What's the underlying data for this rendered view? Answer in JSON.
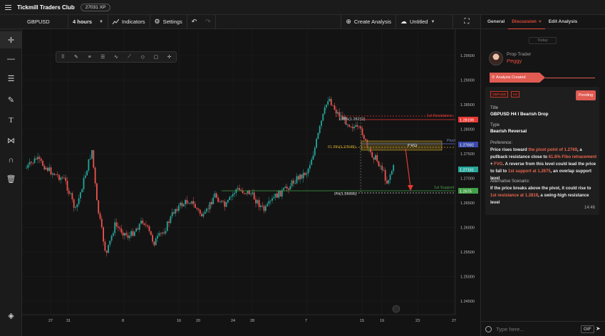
{
  "app": {
    "title": "Tickmill Traders Club",
    "xp": "27031 XP"
  },
  "toolbar": {
    "symbol": "GBPUSD",
    "interval": "4 hours",
    "indicators": "Indicators",
    "settings": "Settings",
    "create_analysis": "Create Analysis",
    "layout_name": "Untitled"
  },
  "chart": {
    "price_labels": [
      "1.29500",
      "1.29000",
      "1.28500",
      "1.28000",
      "1.27500",
      "1.27000",
      "1.26500",
      "1.26000",
      "1.25500",
      "1.25000",
      "1.24500"
    ],
    "date_labels": [
      "27",
      "31",
      "8",
      "16",
      "20",
      "24",
      "28",
      "7",
      "15",
      "19",
      "23",
      "27"
    ],
    "badges": {
      "resistance": "1.28199",
      "fvg_top": "1.27692",
      "current": "1.27191",
      "support": "1.2675"
    },
    "fib_100": "100%(1.28232)",
    "fib_618": "61.8%(1.27645)",
    "fib_0": "0%(1.26696)",
    "resistance_label": "1st Resistance",
    "pivot_label": "Pivot",
    "support_label": "1st Support",
    "fvg_label": "FVG",
    "colors": {
      "bull": "#26a69a",
      "bear": "#ef5350",
      "resistance": "#e53935",
      "support": "#43a047",
      "fvg": "#c9a227",
      "pivot": "#5c6bc0"
    }
  },
  "panel": {
    "tabs": [
      "General",
      "Discussion",
      "Edit Analysis"
    ],
    "active_tab": "Discussion",
    "date_chip": "Today",
    "role": "Prop Trader",
    "user": "Peggy",
    "status": "Analysis Created",
    "tags": [
      "GBPUSD",
      "H4"
    ],
    "pending": "Pending",
    "title_label": "Title",
    "title": "GBPUSD H4 I Bearish Drop",
    "type_label": "Type",
    "type": "Bearish Reversal",
    "pref_label": "Preference:",
    "pref_parts": [
      "Price rises toward ",
      "the pivot point of 1.2769",
      ", a pullback resistance close to ",
      "61.8% Fibo retracement",
      " + ",
      "FVG",
      ". A reverse from this level could lead the price to fall to ",
      "1st support at 1.2675",
      ", an overlap support level"
    ],
    "alt_label": "Alternative Scenario:",
    "alt_parts": [
      "If the price breaks above the pivot, it could rise to ",
      "1st resistance at 1.2819",
      ", a swing-high resistance level"
    ],
    "time": "14:46",
    "input_placeholder": "Type here...",
    "gif": "GIF"
  }
}
